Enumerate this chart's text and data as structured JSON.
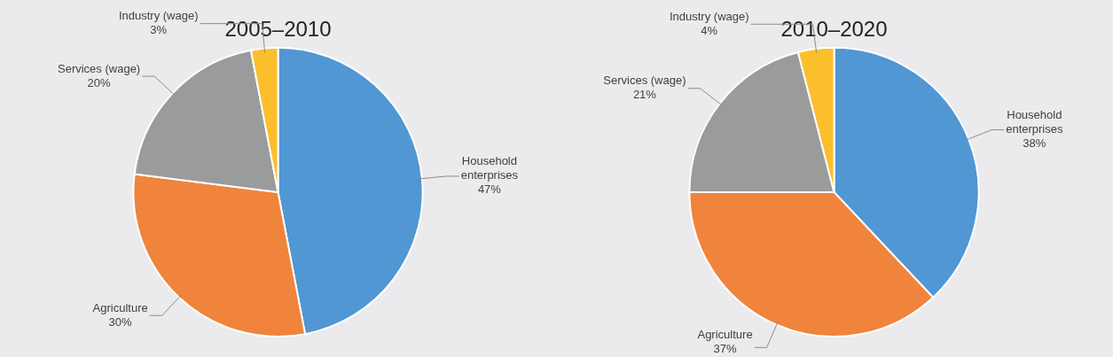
{
  "chart_data": [
    {
      "type": "pie",
      "title": "2005–2010",
      "categories": [
        "Household enterprises",
        "Agriculture",
        "Services (wage)",
        "Industry (wage)"
      ],
      "values": [
        47,
        30,
        20,
        3
      ],
      "colors": [
        "#5097d3",
        "#f0843c",
        "#9a9c9c",
        "#fbbf2c"
      ],
      "value_labels": [
        "47%",
        "30%",
        "20%",
        "3%"
      ],
      "legend": false
    },
    {
      "type": "pie",
      "title": "2010–2020",
      "categories": [
        "Household enterprises",
        "Agriculture",
        "Services (wage)",
        "Industry (wage)"
      ],
      "values": [
        38,
        37,
        21,
        4
      ],
      "colors": [
        "#5097d3",
        "#f0843c",
        "#9a9c9c",
        "#fbbf2c"
      ],
      "value_labels": [
        "38%",
        "37%",
        "21%",
        "4%"
      ],
      "legend": false
    }
  ]
}
